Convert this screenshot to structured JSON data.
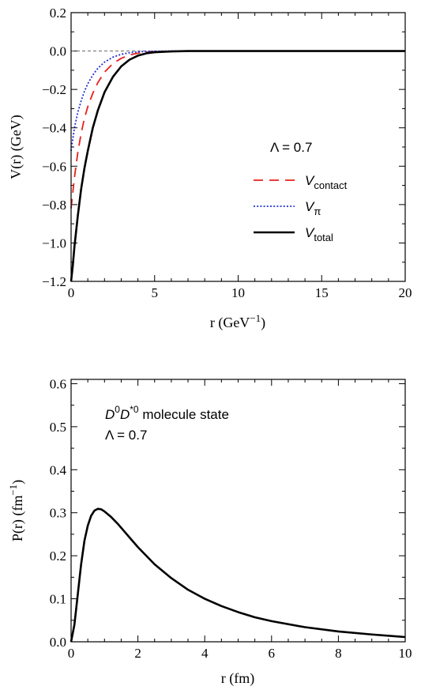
{
  "chart_data": [
    {
      "type": "line",
      "xlabel_main": "r (GeV",
      "xlabel_sup": "−1",
      "xlabel_end": ")",
      "ylabel": "V(r) (GeV)",
      "xlim": [
        0,
        20
      ],
      "ylim": [
        -1.2,
        0.2
      ],
      "xticks": [
        "0",
        "5",
        "10",
        "15",
        "20"
      ],
      "yticks": [
        "−1.2",
        "−1.0",
        "−0.8",
        "−0.6",
        "−0.4",
        "−0.2",
        "0.0",
        "0.2"
      ],
      "legend_header": "Λ = 0.7",
      "legend_placement": "center-right",
      "reference_line": {
        "y": 0,
        "style": "dashed",
        "color": "#555555"
      },
      "series": [
        {
          "name": "V",
          "name_sub": "contact",
          "color": "#e8211a",
          "style": "dashed",
          "x": [
            0.0,
            0.2,
            0.4,
            0.6,
            0.8,
            1.0,
            1.3,
            1.6,
            2.0,
            2.5,
            3.0,
            3.5,
            4.0,
            4.5,
            5.0,
            6.0,
            7.0,
            8.0,
            10.0,
            15.0,
            20.0
          ],
          "y": [
            -0.82,
            -0.66,
            -0.53,
            -0.43,
            -0.35,
            -0.29,
            -0.22,
            -0.165,
            -0.11,
            -0.065,
            -0.038,
            -0.021,
            -0.011,
            -0.006,
            -0.003,
            -0.001,
            0.0,
            0.0,
            0.0,
            0.0,
            0.0
          ]
        },
        {
          "name": "V",
          "name_sub": "π",
          "color": "#1f2fd6",
          "style": "dotted",
          "x": [
            0.0,
            0.2,
            0.4,
            0.6,
            0.8,
            1.0,
            1.3,
            1.6,
            2.0,
            2.5,
            3.0,
            3.5,
            4.0,
            4.5,
            5.0,
            6.0,
            7.0,
            8.0,
            10.0,
            15.0,
            20.0
          ],
          "y": [
            -0.52,
            -0.4,
            -0.32,
            -0.26,
            -0.21,
            -0.17,
            -0.125,
            -0.09,
            -0.058,
            -0.032,
            -0.017,
            -0.009,
            -0.004,
            -0.002,
            -0.001,
            0.0,
            0.0,
            0.0,
            0.0,
            0.0,
            0.0
          ]
        },
        {
          "name": "V",
          "name_sub": "total",
          "color": "#000000",
          "style": "solid",
          "x": [
            0.0,
            0.1,
            0.2,
            0.4,
            0.6,
            0.8,
            1.0,
            1.3,
            1.6,
            2.0,
            2.5,
            3.0,
            3.5,
            4.0,
            4.5,
            5.0,
            6.0,
            7.0,
            8.0,
            10.0,
            15.0,
            20.0
          ],
          "y": [
            -1.2,
            -1.12,
            -1.02,
            -0.86,
            -0.72,
            -0.61,
            -0.52,
            -0.4,
            -0.31,
            -0.215,
            -0.135,
            -0.08,
            -0.045,
            -0.024,
            -0.012,
            -0.006,
            -0.002,
            0.0,
            0.0,
            0.0,
            0.0,
            0.0
          ]
        }
      ]
    },
    {
      "type": "line",
      "xlabel": "r (fm)",
      "ylabel_main": "P(r) (fm",
      "ylabel_sup": "−1",
      "ylabel_end": ")",
      "xlim": [
        0,
        10
      ],
      "ylim": [
        0,
        0.61
      ],
      "xticks": [
        "0",
        "2",
        "4",
        "6",
        "8",
        "10"
      ],
      "yticks": [
        "0.0",
        "0.1",
        "0.2",
        "0.3",
        "0.4",
        "0.5",
        "0.6"
      ],
      "annotation_state_a": "D",
      "annotation_state_a_sup": "0",
      "annotation_state_b": "D",
      "annotation_state_b_sup": "*0",
      "annotation_state_text": " molecule state",
      "annotation_lambda": "Λ = 0.7",
      "series": [
        {
          "color": "#000000",
          "style": "solid",
          "x": [
            0.0,
            0.1,
            0.2,
            0.3,
            0.4,
            0.5,
            0.6,
            0.7,
            0.8,
            0.9,
            1.0,
            1.2,
            1.4,
            1.6,
            1.8,
            2.0,
            2.5,
            3.0,
            3.5,
            4.0,
            4.5,
            5.0,
            5.5,
            6.0,
            7.0,
            8.0,
            9.0,
            10.0
          ],
          "y": [
            0.0,
            0.04,
            0.11,
            0.18,
            0.235,
            0.27,
            0.293,
            0.305,
            0.309,
            0.308,
            0.303,
            0.29,
            0.274,
            0.256,
            0.238,
            0.22,
            0.18,
            0.148,
            0.121,
            0.1,
            0.083,
            0.069,
            0.057,
            0.048,
            0.034,
            0.024,
            0.017,
            0.011
          ]
        }
      ]
    }
  ]
}
